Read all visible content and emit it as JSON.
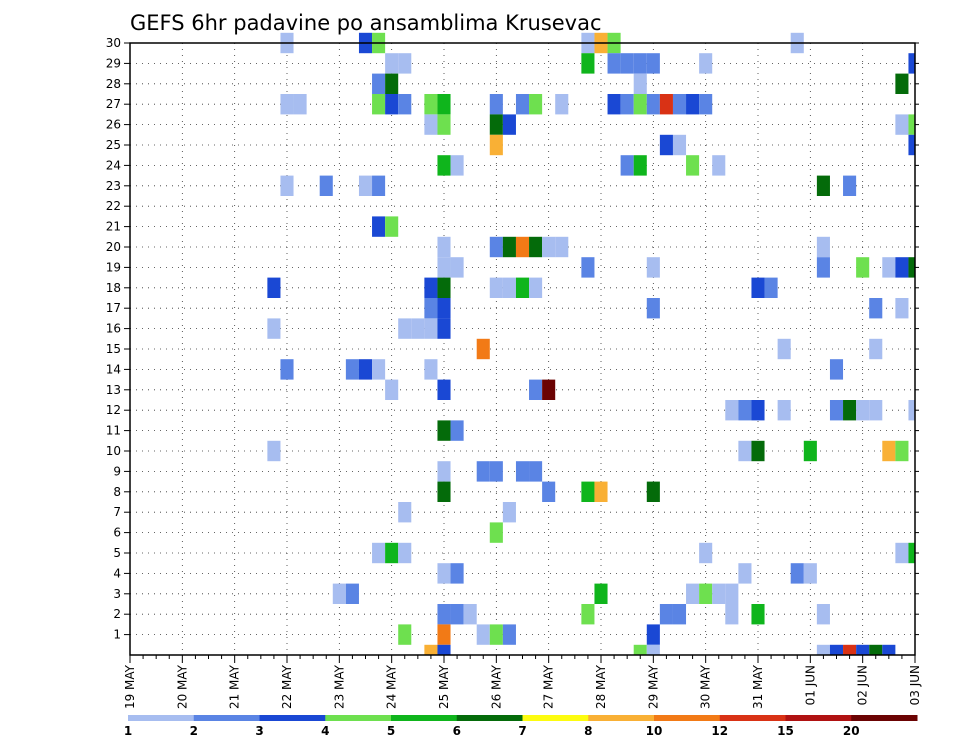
{
  "chart_data": {
    "type": "heatmap",
    "title": "GEFS 6hr padavine po ansamblima Krusevac",
    "x_ticks": [
      "19 MAY",
      "20 MAY",
      "21 MAY",
      "22 MAY",
      "23 MAY",
      "24 MAY",
      "25 MAY",
      "26 MAY",
      "27 MAY",
      "28 MAY",
      "29 MAY",
      "30 MAY",
      "31 MAY",
      "01 JUN",
      "02 JUN",
      "03 JUN"
    ],
    "y_ticks": [
      1,
      2,
      3,
      4,
      5,
      6,
      7,
      8,
      9,
      10,
      11,
      12,
      13,
      14,
      15,
      16,
      17,
      18,
      19,
      20,
      21,
      22,
      23,
      24,
      25,
      26,
      27,
      28,
      29,
      30
    ],
    "ylim": [
      0,
      30
    ],
    "x_step_hours": 6,
    "steps": 61,
    "grid": true,
    "legend": {
      "placement": "bottom",
      "labels": [
        "1",
        "2",
        "3",
        "4",
        "5",
        "6",
        "7",
        "8",
        "10",
        "12",
        "15",
        "20"
      ],
      "colors": [
        "#a7bdf0",
        "#5a84e4",
        "#1a48d4",
        "#6ee04f",
        "#0fb51c",
        "#046b0a",
        "#fdfc10",
        "#f9b035",
        "#f27a16",
        "#d93215",
        "#b01212",
        "#6b0303"
      ]
    },
    "cells": [
      [
        12,
        30,
        1
      ],
      [
        18,
        30,
        3
      ],
      [
        19,
        30,
        5
      ],
      [
        35,
        30,
        1
      ],
      [
        36,
        30,
        8
      ],
      [
        37,
        30,
        5
      ],
      [
        51,
        30,
        1
      ],
      [
        20,
        29,
        1
      ],
      [
        21,
        29,
        1
      ],
      [
        35,
        29,
        6
      ],
      [
        37,
        29,
        2
      ],
      [
        38,
        29,
        2
      ],
      [
        39,
        29,
        2
      ],
      [
        40,
        29,
        2
      ],
      [
        44,
        29,
        1
      ],
      [
        60,
        29,
        3
      ],
      [
        19,
        28,
        2
      ],
      [
        20,
        28,
        7
      ],
      [
        39,
        28,
        1
      ],
      [
        59,
        28,
        7
      ],
      [
        12,
        27,
        1
      ],
      [
        13,
        27,
        1
      ],
      [
        19,
        27,
        5
      ],
      [
        20,
        27,
        3
      ],
      [
        21,
        27,
        2
      ],
      [
        23,
        27,
        5
      ],
      [
        24,
        27,
        6
      ],
      [
        28,
        27,
        2
      ],
      [
        30,
        27,
        2
      ],
      [
        31,
        27,
        5
      ],
      [
        33,
        27,
        1
      ],
      [
        37,
        27,
        3
      ],
      [
        38,
        27,
        2
      ],
      [
        39,
        27,
        5
      ],
      [
        40,
        27,
        2
      ],
      [
        41,
        27,
        14
      ],
      [
        42,
        27,
        2
      ],
      [
        43,
        27,
        3
      ],
      [
        44,
        27,
        2
      ],
      [
        23,
        26,
        1
      ],
      [
        24,
        26,
        5
      ],
      [
        28,
        26,
        7
      ],
      [
        29,
        26,
        3
      ],
      [
        59,
        26,
        1
      ],
      [
        60,
        26,
        5
      ],
      [
        28,
        25,
        8
      ],
      [
        41,
        25,
        3
      ],
      [
        42,
        25,
        1
      ],
      [
        60,
        25,
        3
      ],
      [
        24,
        24,
        6
      ],
      [
        25,
        24,
        1
      ],
      [
        38,
        24,
        2
      ],
      [
        39,
        24,
        6
      ],
      [
        43,
        24,
        5
      ],
      [
        45,
        24,
        1
      ],
      [
        12,
        23,
        1
      ],
      [
        15,
        23,
        2
      ],
      [
        18,
        23,
        1
      ],
      [
        19,
        23,
        2
      ],
      [
        53,
        23,
        7
      ],
      [
        55,
        23,
        2
      ],
      [
        19,
        21,
        3
      ],
      [
        20,
        21,
        5
      ],
      [
        24,
        20,
        1
      ],
      [
        28,
        20,
        2
      ],
      [
        29,
        20,
        7
      ],
      [
        30,
        20,
        10
      ],
      [
        31,
        20,
        7
      ],
      [
        32,
        20,
        1
      ],
      [
        33,
        20,
        1
      ],
      [
        53,
        20,
        1
      ],
      [
        24,
        19,
        1
      ],
      [
        25,
        19,
        1
      ],
      [
        35,
        19,
        2
      ],
      [
        40,
        19,
        1
      ],
      [
        53,
        19,
        2
      ],
      [
        56,
        19,
        5
      ],
      [
        58,
        19,
        1
      ],
      [
        59,
        19,
        3
      ],
      [
        60,
        19,
        7
      ],
      [
        11,
        18,
        3
      ],
      [
        23,
        18,
        3
      ],
      [
        24,
        18,
        7
      ],
      [
        28,
        18,
        1
      ],
      [
        29,
        18,
        1
      ],
      [
        30,
        18,
        6
      ],
      [
        31,
        18,
        1
      ],
      [
        48,
        18,
        3
      ],
      [
        49,
        18,
        2
      ],
      [
        23,
        17,
        2
      ],
      [
        24,
        17,
        3
      ],
      [
        40,
        17,
        2
      ],
      [
        57,
        17,
        2
      ],
      [
        59,
        17,
        1
      ],
      [
        11,
        16,
        1
      ],
      [
        21,
        16,
        1
      ],
      [
        22,
        16,
        1
      ],
      [
        23,
        16,
        1
      ],
      [
        24,
        16,
        3
      ],
      [
        27,
        15,
        10
      ],
      [
        50,
        15,
        1
      ],
      [
        57,
        15,
        1
      ],
      [
        12,
        14,
        2
      ],
      [
        17,
        14,
        2
      ],
      [
        18,
        14,
        3
      ],
      [
        19,
        14,
        1
      ],
      [
        23,
        14,
        1
      ],
      [
        54,
        14,
        2
      ],
      [
        20,
        13,
        1
      ],
      [
        24,
        13,
        3
      ],
      [
        31,
        13,
        2
      ],
      [
        32,
        13,
        20
      ],
      [
        46,
        12,
        1
      ],
      [
        47,
        12,
        2
      ],
      [
        48,
        12,
        3
      ],
      [
        50,
        12,
        1
      ],
      [
        54,
        12,
        2
      ],
      [
        55,
        12,
        7
      ],
      [
        56,
        12,
        1
      ],
      [
        57,
        12,
        1
      ],
      [
        60,
        12,
        1
      ],
      [
        24,
        11,
        7
      ],
      [
        25,
        11,
        2
      ],
      [
        11,
        10,
        1
      ],
      [
        47,
        10,
        1
      ],
      [
        48,
        10,
        7
      ],
      [
        52,
        10,
        6
      ],
      [
        58,
        10,
        8
      ],
      [
        59,
        10,
        5
      ],
      [
        24,
        9,
        1
      ],
      [
        27,
        9,
        2
      ],
      [
        28,
        9,
        2
      ],
      [
        30,
        9,
        2
      ],
      [
        31,
        9,
        2
      ],
      [
        24,
        8,
        7
      ],
      [
        32,
        8,
        2
      ],
      [
        35,
        8,
        6
      ],
      [
        36,
        8,
        8
      ],
      [
        40,
        8,
        7
      ],
      [
        21,
        7,
        1
      ],
      [
        29,
        7,
        1
      ],
      [
        28,
        6,
        5
      ],
      [
        19,
        5,
        1
      ],
      [
        20,
        5,
        6
      ],
      [
        21,
        5,
        1
      ],
      [
        44,
        5,
        1
      ],
      [
        59,
        5,
        1
      ],
      [
        60,
        5,
        6
      ],
      [
        24,
        4,
        1
      ],
      [
        25,
        4,
        2
      ],
      [
        47,
        4,
        1
      ],
      [
        51,
        4,
        2
      ],
      [
        52,
        4,
        1
      ],
      [
        16,
        3,
        1
      ],
      [
        17,
        3,
        2
      ],
      [
        36,
        3,
        6
      ],
      [
        43,
        3,
        1
      ],
      [
        44,
        3,
        5
      ],
      [
        45,
        3,
        1
      ],
      [
        46,
        3,
        1
      ],
      [
        24,
        2,
        2
      ],
      [
        25,
        2,
        2
      ],
      [
        26,
        2,
        1
      ],
      [
        41,
        2,
        2
      ],
      [
        42,
        2,
        2
      ],
      [
        35,
        2,
        5
      ],
      [
        46,
        2,
        1
      ],
      [
        48,
        2,
        6
      ],
      [
        53,
        2,
        1
      ],
      [
        21,
        1,
        5
      ],
      [
        24,
        1,
        10
      ],
      [
        27,
        1,
        1
      ],
      [
        28,
        1,
        5
      ],
      [
        29,
        1,
        2
      ],
      [
        40,
        1,
        3
      ],
      [
        23,
        0,
        8
      ],
      [
        24,
        0,
        3
      ],
      [
        39,
        0,
        5
      ],
      [
        40,
        0,
        1
      ],
      [
        53,
        0,
        1
      ],
      [
        54,
        0,
        3
      ],
      [
        55,
        0,
        15
      ],
      [
        56,
        0,
        3
      ],
      [
        57,
        0,
        7
      ],
      [
        58,
        0,
        3
      ]
    ]
  }
}
